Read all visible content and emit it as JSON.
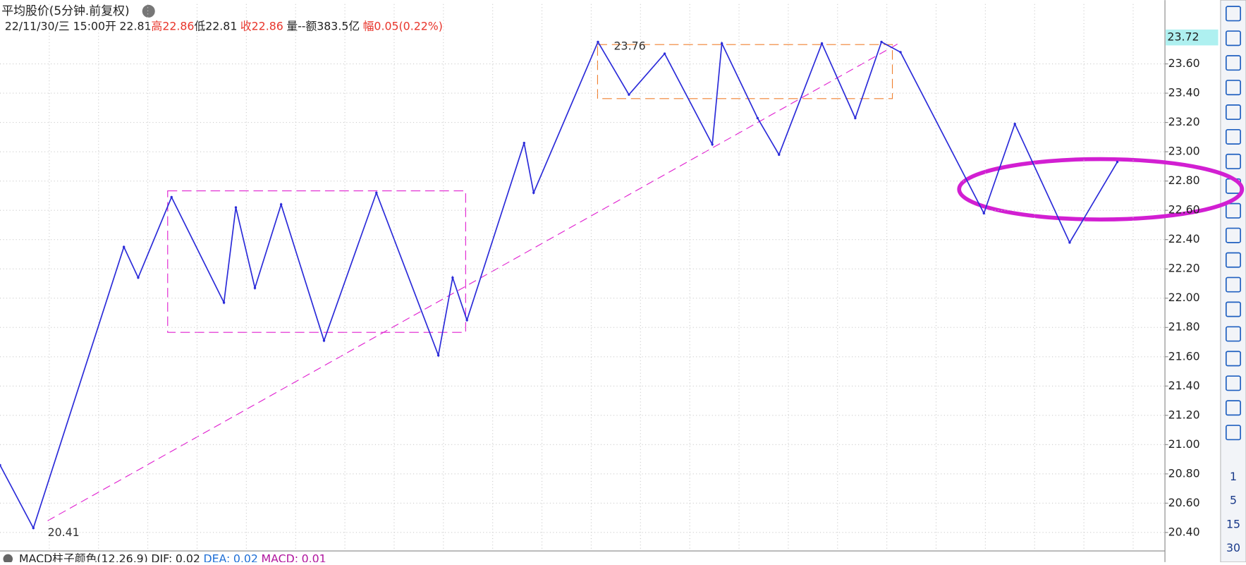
{
  "chart_data": {
    "type": "line",
    "title": "平均股价(5分钟.前复权)",
    "info": [
      "22/11/30/三 15:00",
      "开",
      "22.81",
      "高",
      "22.86",
      "低",
      "22.81",
      "收",
      "22.86",
      "量--",
      "额383.5亿",
      "幅",
      "0.05(0.22%)"
    ],
    "current_label": "23.72",
    "annotations": [
      "23.76",
      "20.41"
    ],
    "footer": [
      "MACD柱子颜色(12,26,9)",
      "DIF:",
      "0.02",
      "DEA:",
      "0.02",
      "MACD:",
      "0.01"
    ],
    "toolbar": [
      "1",
      "5",
      "15",
      "30"
    ],
    "x": [
      0,
      14,
      52,
      58,
      72,
      94,
      99,
      107,
      118,
      136,
      158,
      184,
      190,
      196,
      220,
      224,
      251,
      264,
      279,
      299,
      303,
      318,
      327,
      345,
      359,
      370,
      378,
      413,
      426,
      449,
      469
    ],
    "series": [
      {
        "color": "#2b2bd9",
        "values": [
          20.86,
          20.43,
          22.35,
          22.14,
          22.69,
          21.97,
          22.62,
          22.07,
          22.64,
          21.71,
          22.72,
          21.61,
          22.14,
          21.85,
          23.06,
          22.72,
          23.75,
          23.39,
          23.67,
          23.05,
          23.74,
          23.23,
          22.98,
          23.74,
          23.23,
          23.75,
          23.68,
          22.58,
          23.19,
          22.38,
          22.93
        ]
      }
    ],
    "xlim": [
      0,
      489
    ],
    "ylim": [
      20.29,
      23.9
    ],
    "yticks": [
      {
        "value": 20.4,
        "label": "20.40"
      },
      {
        "value": 20.6,
        "label": "20.60"
      },
      {
        "value": 20.8,
        "label": "20.80"
      },
      {
        "value": 21.0,
        "label": "21.00"
      },
      {
        "value": 21.2,
        "label": "21.20"
      },
      {
        "value": 21.4,
        "label": "21.40"
      },
      {
        "value": 21.6,
        "label": "21.60"
      },
      {
        "value": 21.8,
        "label": "21.80"
      },
      {
        "value": 22.0,
        "label": "22.00"
      },
      {
        "value": 22.2,
        "label": "22.20"
      },
      {
        "value": 22.4,
        "label": "22.40"
      },
      {
        "value": 22.6,
        "label": "22.60"
      },
      {
        "value": 22.8,
        "label": "22.80"
      },
      {
        "value": 23.0,
        "label": "23.00"
      },
      {
        "value": 23.2,
        "label": "23.20"
      },
      {
        "value": 23.4,
        "label": "23.40"
      },
      {
        "value": 23.6,
        "label": "23.60"
      }
    ],
    "grid": true
  }
}
